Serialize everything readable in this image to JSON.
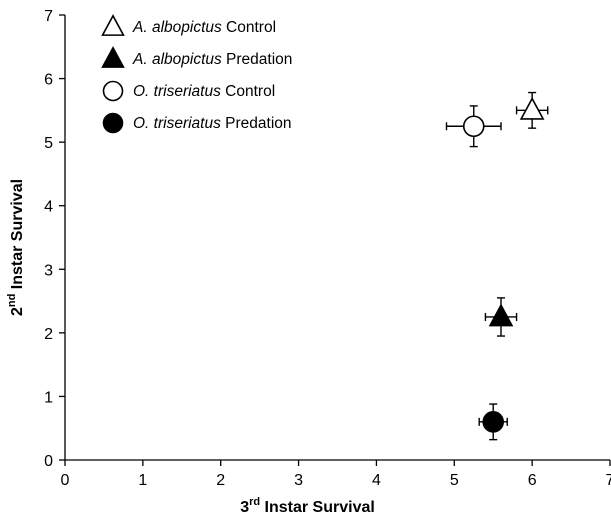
{
  "chart_data": {
    "type": "scatter",
    "xlabel": {
      "base": "3",
      "sup": "rd",
      "rest": " Instar Survival"
    },
    "ylabel": {
      "base": "2",
      "sup": "nd",
      "rest": " Instar Survival"
    },
    "xlim": [
      0,
      7
    ],
    "ylim": [
      0,
      7
    ],
    "xticks": [
      "0",
      "1",
      "2",
      "3",
      "4",
      "5",
      "6",
      "7"
    ],
    "yticks": [
      "0",
      "1",
      "2",
      "3",
      "4",
      "5",
      "6",
      "7"
    ],
    "grid": false,
    "legend_position": "top-left",
    "series": [
      {
        "species": "A. albopictus",
        "treatment": " Control",
        "marker": "triangle",
        "fill": "#ffffff",
        "x": 6.0,
        "y": 5.5,
        "xerr": 0.2,
        "yerr": 0.28
      },
      {
        "species": "A. albopictus",
        "treatment": " Predation",
        "marker": "triangle",
        "fill": "#000000",
        "x": 5.6,
        "y": 2.25,
        "xerr": 0.2,
        "yerr": 0.3
      },
      {
        "species": "O. triseriatus",
        "treatment": " Control",
        "marker": "circle",
        "fill": "#ffffff",
        "x": 5.25,
        "y": 5.25,
        "xerr": 0.35,
        "yerr": 0.32
      },
      {
        "species": "O. triseriatus",
        "treatment": " Predation",
        "marker": "circle",
        "fill": "#000000",
        "x": 5.5,
        "y": 0.6,
        "xerr": 0.18,
        "yerr": 0.28
      }
    ]
  }
}
